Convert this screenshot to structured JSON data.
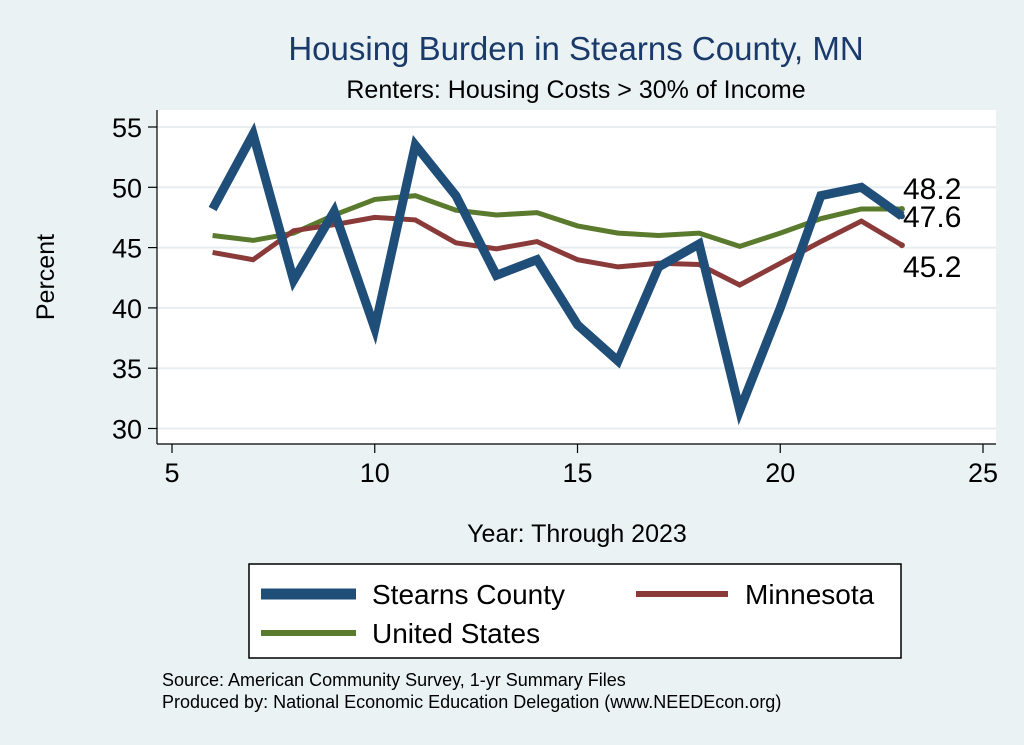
{
  "chart_data": {
    "type": "line",
    "title": "Housing Burden in Stearns County, MN",
    "subtitle": "Renters: Housing Costs > 30% of Income",
    "xlabel": "Year: Through 2023",
    "ylabel": "Percent",
    "xlim": [
      5,
      25
    ],
    "ylim": [
      29.5,
      55.5
    ],
    "xticks": [
      5,
      10,
      15,
      20,
      25
    ],
    "yticks": [
      30,
      35,
      40,
      45,
      50,
      55
    ],
    "grid": "horizontal",
    "legend_position": "bottom",
    "series": [
      {
        "name": "Stearns County",
        "color": "#1f4e79",
        "x": [
          6,
          7,
          8,
          9,
          10,
          11,
          12,
          13,
          14,
          15,
          16,
          17,
          18,
          19,
          20,
          21,
          22,
          23
        ],
        "values": [
          48.2,
          54.4,
          42.3,
          48.0,
          38.3,
          53.5,
          49.3,
          42.7,
          44.0,
          38.6,
          35.6,
          43.4,
          45.3,
          31.5,
          40.0,
          49.3,
          50.0,
          47.6
        ],
        "end_label": "47.6"
      },
      {
        "name": "Minnesota",
        "color": "#8b3a3a",
        "x": [
          6,
          7,
          8,
          9,
          10,
          11,
          12,
          13,
          14,
          15,
          16,
          17,
          18,
          19,
          20,
          21,
          22,
          23
        ],
        "values": [
          44.6,
          44.0,
          46.4,
          46.9,
          47.5,
          47.3,
          45.4,
          44.9,
          45.5,
          44.0,
          43.4,
          43.7,
          43.6,
          41.9,
          43.7,
          45.5,
          47.2,
          45.2
        ],
        "end_label": "45.2"
      },
      {
        "name": "United States",
        "color": "#5a7a2e",
        "x": [
          6,
          7,
          8,
          9,
          10,
          11,
          12,
          13,
          14,
          15,
          16,
          17,
          18,
          19,
          20,
          21,
          22,
          23
        ],
        "values": [
          46.0,
          45.6,
          46.2,
          47.7,
          49.0,
          49.3,
          48.1,
          47.7,
          47.9,
          46.8,
          46.2,
          46.0,
          46.2,
          45.1,
          46.2,
          47.4,
          48.2,
          48.2
        ],
        "end_label": "48.2"
      }
    ]
  },
  "source_line1": "Source: American Community Survey, 1-yr Summary Files",
  "source_line2": "Produced by: National Economic Education Delegation (www.NEEDEcon.org)"
}
